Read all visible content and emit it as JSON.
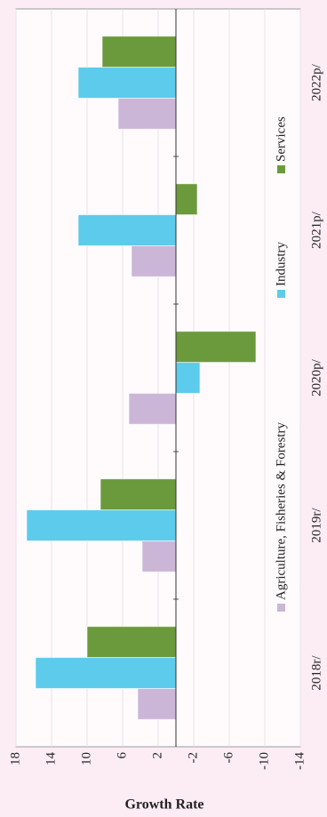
{
  "chart_data": {
    "type": "bar",
    "y_label": "Growth Rate",
    "categories": [
      "2018r/",
      "2019r/",
      "2020p/",
      "2021p/",
      "2022p/"
    ],
    "series": [
      {
        "name": "Agriculture, Fisheries & Forestry",
        "color": "#cbb6d8",
        "values": [
          4.3,
          3.8,
          5.3,
          5.0,
          6.5
        ]
      },
      {
        "name": "Industry",
        "color": "#5ccbec",
        "values": [
          15.8,
          16.8,
          -2.7,
          11.0,
          11.0
        ]
      },
      {
        "name": "Services",
        "color": "#6b9a3c",
        "values": [
          10.0,
          8.5,
          -9.0,
          -2.4,
          8.3
        ]
      }
    ],
    "ylim": [
      -14,
      18
    ],
    "yticks": [
      18,
      14,
      10,
      6,
      2,
      -2,
      -6,
      -10,
      -14
    ],
    "grid": true
  }
}
